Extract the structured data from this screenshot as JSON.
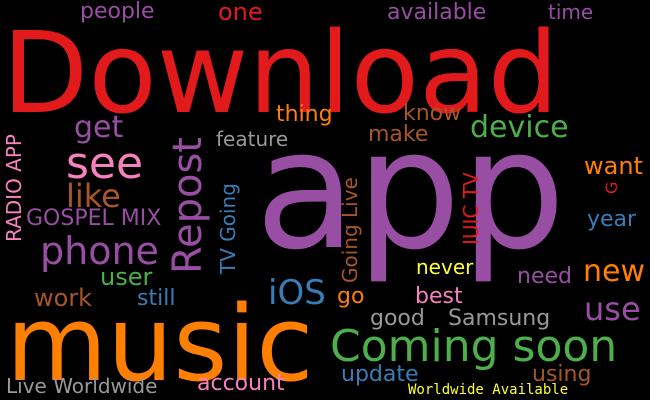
{
  "words": [
    {
      "key": "download",
      "text": "Download",
      "color": "#e31a1c"
    },
    {
      "key": "app",
      "text": "app",
      "color": "#984ea3"
    },
    {
      "key": "music",
      "text": "music",
      "color": "#ff7f00"
    },
    {
      "key": "coming_soon",
      "text": "Coming soon",
      "color": "#4daf4a"
    },
    {
      "key": "repost",
      "text": "Repost",
      "color": "#984ea3"
    },
    {
      "key": "see",
      "text": "see",
      "color": "#f781bf"
    },
    {
      "key": "phone",
      "text": "phone",
      "color": "#984ea3"
    },
    {
      "key": "device",
      "text": "device",
      "color": "#4daf4a"
    },
    {
      "key": "people",
      "text": "people",
      "color": "#984ea3"
    },
    {
      "key": "one",
      "text": "one",
      "color": "#e31a1c"
    },
    {
      "key": "available",
      "text": "available",
      "color": "#984ea3"
    },
    {
      "key": "time",
      "text": "time",
      "color": "#984ea3"
    },
    {
      "key": "thing",
      "text": "thing",
      "color": "#ff7f00"
    },
    {
      "key": "know",
      "text": "know",
      "color": "#a65628"
    },
    {
      "key": "get",
      "text": "get",
      "color": "#984ea3"
    },
    {
      "key": "feature",
      "text": "feature",
      "color": "#999999"
    },
    {
      "key": "make",
      "text": "make",
      "color": "#a65628"
    },
    {
      "key": "like",
      "text": "like",
      "color": "#a65628"
    },
    {
      "key": "want",
      "text": "want",
      "color": "#ff7f00"
    },
    {
      "key": "radio_app",
      "text": "RADIO APP",
      "color": "#f781bf"
    },
    {
      "key": "gospel_mix",
      "text": "GOSPEL MIX",
      "color": "#984ea3"
    },
    {
      "key": "tv_going",
      "text": "TV Going",
      "color": "#377eb8"
    },
    {
      "key": "going_live",
      "text": "Going Live",
      "color": "#a65628"
    },
    {
      "key": "iuic_tv",
      "text": "IUIC TV",
      "color": "#e31a1c"
    },
    {
      "key": "g",
      "text": "G",
      "color": "#e31a1c"
    },
    {
      "key": "year",
      "text": "year",
      "color": "#377eb8"
    },
    {
      "key": "user",
      "text": "user",
      "color": "#4daf4a"
    },
    {
      "key": "ios",
      "text": "iOS",
      "color": "#377eb8"
    },
    {
      "key": "never",
      "text": "never",
      "color": "#ffff33"
    },
    {
      "key": "need",
      "text": "need",
      "color": "#984ea3"
    },
    {
      "key": "new",
      "text": "new",
      "color": "#ff7f00"
    },
    {
      "key": "work",
      "text": "work",
      "color": "#a65628"
    },
    {
      "key": "still",
      "text": "still",
      "color": "#377eb8"
    },
    {
      "key": "go",
      "text": "go",
      "color": "#ff7f00"
    },
    {
      "key": "best",
      "text": "best",
      "color": "#f781bf"
    },
    {
      "key": "use",
      "text": "use",
      "color": "#984ea3"
    },
    {
      "key": "good",
      "text": "good",
      "color": "#999999"
    },
    {
      "key": "samsung",
      "text": "Samsung",
      "color": "#999999"
    },
    {
      "key": "update",
      "text": "update",
      "color": "#377eb8"
    },
    {
      "key": "using",
      "text": "using",
      "color": "#a65628"
    },
    {
      "key": "live_worldwide",
      "text": "Live Worldwide",
      "color": "#999999"
    },
    {
      "key": "account",
      "text": "account",
      "color": "#f781bf"
    },
    {
      "key": "worldwide_available",
      "text": "Worldwide Available",
      "color": "#ffff33"
    }
  ]
}
